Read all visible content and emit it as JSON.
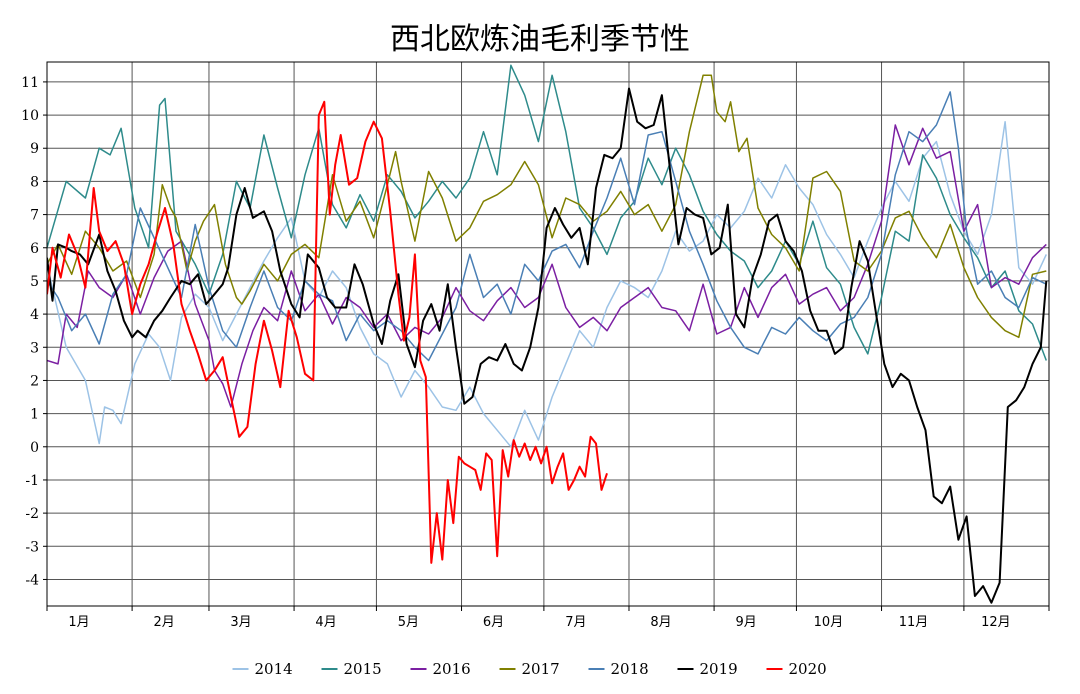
{
  "chart_data": {
    "type": "line",
    "title": "西北欧炼油毛利季节性",
    "xlabel": "",
    "ylabel": "",
    "x_range": [
      1,
      366
    ],
    "ylim": [
      -4.8,
      11.6
    ],
    "y_ticks": [
      -4,
      -3,
      -2,
      -1,
      0,
      1,
      2,
      3,
      4,
      5,
      6,
      7,
      8,
      9,
      10,
      11
    ],
    "month_labels": [
      "1月",
      "2月",
      "3月",
      "4月",
      "5月",
      "6月",
      "7月",
      "8月",
      "9月",
      "10月",
      "11月",
      "12月"
    ],
    "month_boundaries": [
      1,
      32,
      60,
      91,
      121,
      152,
      182,
      213,
      244,
      274,
      305,
      335,
      366
    ],
    "grid": true,
    "legend_position": "bottom",
    "series": [
      {
        "name": "2014",
        "color": "#9dc3e6",
        "x": [
          1,
          8,
          15,
          20,
          22,
          25,
          28,
          33,
          38,
          42,
          46,
          50,
          55,
          60,
          65,
          70,
          75,
          80,
          85,
          90,
          95,
          100,
          105,
          110,
          115,
          120,
          125,
          130,
          135,
          140,
          145,
          150,
          155,
          160,
          165,
          170,
          175,
          180,
          185,
          190,
          195,
          200,
          205,
          210,
          215,
          220,
          225,
          230,
          235,
          240,
          245,
          250,
          255,
          260,
          265,
          270,
          275,
          280,
          285,
          290,
          295,
          300,
          305,
          310,
          315,
          320,
          325,
          330,
          335,
          340,
          345,
          350,
          355,
          360,
          365
        ],
        "y": [
          5.5,
          3.0,
          2.0,
          0.1,
          1.2,
          1.1,
          0.7,
          2.5,
          3.4,
          3.0,
          2.0,
          3.9,
          4.6,
          4.2,
          3.2,
          4.0,
          4.8,
          5.6,
          6.3,
          6.9,
          5.0,
          4.5,
          5.3,
          4.8,
          3.6,
          2.8,
          2.5,
          1.5,
          2.3,
          1.8,
          1.2,
          1.1,
          1.8,
          1.0,
          0.5,
          0.0,
          1.1,
          0.2,
          1.5,
          2.5,
          3.5,
          3.0,
          4.2,
          5.0,
          4.8,
          4.5,
          5.3,
          6.5,
          5.9,
          6.2,
          7.0,
          6.6,
          7.1,
          8.1,
          7.5,
          8.5,
          7.8,
          7.3,
          6.4,
          5.8,
          5.1,
          6.2,
          7.2,
          8.0,
          7.4,
          8.7,
          9.2,
          7.6,
          6.5,
          5.8,
          7.0,
          9.8,
          5.4,
          4.9,
          5.8
        ]
      },
      {
        "name": "2015",
        "color": "#2e8b8b",
        "x": [
          1,
          8,
          15,
          20,
          24,
          28,
          33,
          38,
          42,
          44,
          48,
          55,
          60,
          65,
          70,
          75,
          80,
          85,
          90,
          95,
          100,
          105,
          110,
          115,
          120,
          125,
          130,
          135,
          140,
          145,
          150,
          155,
          160,
          165,
          170,
          175,
          180,
          185,
          190,
          195,
          200,
          205,
          210,
          215,
          220,
          225,
          230,
          235,
          240,
          245,
          250,
          255,
          260,
          265,
          270,
          275,
          280,
          285,
          290,
          295,
          300,
          305,
          310,
          315,
          320,
          325,
          330,
          335,
          340,
          345,
          350,
          355,
          360,
          365
        ],
        "y": [
          6.0,
          8.0,
          7.5,
          9.0,
          8.8,
          9.6,
          7.2,
          6.0,
          10.3,
          10.5,
          6.5,
          5.5,
          4.6,
          5.8,
          8.0,
          7.2,
          9.4,
          7.8,
          6.3,
          8.2,
          9.6,
          7.3,
          6.6,
          7.6,
          6.8,
          8.2,
          7.7,
          6.9,
          7.4,
          8.0,
          7.5,
          8.1,
          9.5,
          8.2,
          11.5,
          10.6,
          9.2,
          11.2,
          9.5,
          7.2,
          6.6,
          5.8,
          6.9,
          7.4,
          8.7,
          7.9,
          9.0,
          8.2,
          7.1,
          6.4,
          5.9,
          5.6,
          4.8,
          5.3,
          6.2,
          5.5,
          6.8,
          5.4,
          4.9,
          3.6,
          2.8,
          4.5,
          6.5,
          6.2,
          8.8,
          8.1,
          7.0,
          6.3,
          5.7,
          4.8,
          5.3,
          4.1,
          3.7,
          2.6
        ]
      },
      {
        "name": "2016",
        "color": "#7b1fa2",
        "x": [
          1,
          5,
          8,
          12,
          16,
          20,
          25,
          30,
          35,
          40,
          45,
          50,
          55,
          60,
          62,
          65,
          68,
          72,
          76,
          80,
          85,
          90,
          95,
          100,
          105,
          110,
          115,
          120,
          125,
          130,
          135,
          140,
          145,
          150,
          155,
          160,
          165,
          170,
          175,
          180,
          185,
          190,
          195,
          200,
          205,
          210,
          215,
          220,
          225,
          230,
          235,
          240,
          245,
          250,
          255,
          260,
          265,
          270,
          275,
          280,
          285,
          290,
          295,
          300,
          305,
          310,
          315,
          320,
          325,
          330,
          335,
          340,
          345,
          350,
          355,
          360,
          365
        ],
        "y": [
          2.6,
          2.5,
          4.0,
          3.6,
          5.3,
          4.8,
          4.5,
          5.2,
          4.0,
          5.1,
          5.9,
          6.2,
          4.3,
          3.2,
          2.3,
          1.9,
          1.2,
          2.5,
          3.5,
          4.2,
          3.8,
          5.3,
          4.1,
          4.6,
          3.7,
          4.5,
          4.2,
          3.6,
          4.0,
          3.2,
          3.6,
          3.4,
          3.9,
          4.8,
          4.1,
          3.8,
          4.4,
          4.8,
          4.2,
          4.5,
          5.5,
          4.2,
          3.6,
          3.9,
          3.5,
          4.2,
          4.5,
          4.8,
          4.2,
          4.1,
          3.5,
          4.9,
          3.4,
          3.6,
          4.8,
          3.9,
          4.8,
          5.2,
          4.3,
          4.6,
          4.8,
          4.1,
          4.5,
          5.5,
          6.8,
          9.7,
          8.5,
          9.6,
          8.7,
          8.9,
          6.5,
          7.3,
          4.8,
          5.1,
          4.9,
          5.7,
          6.1
        ]
      },
      {
        "name": "2017",
        "color": "#808000",
        "x": [
          1,
          5,
          10,
          15,
          20,
          25,
          30,
          35,
          40,
          43,
          46,
          48,
          52,
          55,
          58,
          62,
          66,
          70,
          72,
          75,
          80,
          85,
          90,
          95,
          100,
          105,
          110,
          115,
          120,
          125,
          128,
          130,
          135,
          140,
          145,
          150,
          155,
          160,
          165,
          170,
          175,
          180,
          185,
          190,
          195,
          200,
          205,
          210,
          215,
          220,
          225,
          230,
          235,
          240,
          243,
          245,
          248,
          250,
          253,
          256,
          260,
          265,
          270,
          275,
          280,
          285,
          290,
          295,
          300,
          305,
          310,
          315,
          320,
          325,
          330,
          335,
          340,
          345,
          350,
          355,
          360,
          365
        ],
        "y": [
          5.5,
          6.1,
          5.2,
          6.5,
          6.0,
          5.3,
          5.6,
          4.5,
          5.8,
          7.9,
          7.2,
          6.9,
          5.3,
          6.2,
          6.8,
          7.3,
          5.5,
          4.5,
          4.3,
          4.7,
          5.5,
          5.0,
          5.8,
          6.1,
          5.7,
          8.2,
          6.8,
          7.4,
          6.3,
          7.9,
          8.9,
          8.0,
          6.2,
          8.3,
          7.5,
          6.2,
          6.6,
          7.4,
          7.6,
          7.9,
          8.6,
          7.9,
          6.3,
          7.5,
          7.3,
          6.8,
          7.1,
          7.7,
          7.0,
          7.3,
          6.5,
          7.3,
          9.5,
          11.2,
          11.2,
          10.1,
          9.8,
          10.4,
          8.9,
          9.3,
          7.2,
          6.4,
          6.0,
          5.3,
          8.1,
          8.3,
          7.7,
          5.6,
          5.3,
          5.9,
          6.9,
          7.1,
          6.3,
          5.7,
          6.7,
          5.4,
          4.5,
          3.9,
          3.5,
          3.3,
          5.2,
          5.3
        ]
      },
      {
        "name": "2018",
        "color": "#4a7fb5",
        "x": [
          1,
          5,
          10,
          15,
          20,
          25,
          30,
          35,
          40,
          45,
          50,
          55,
          60,
          65,
          70,
          75,
          80,
          85,
          90,
          95,
          100,
          105,
          110,
          115,
          120,
          125,
          130,
          135,
          140,
          145,
          150,
          155,
          160,
          165,
          170,
          175,
          180,
          185,
          190,
          195,
          200,
          205,
          210,
          215,
          220,
          225,
          230,
          235,
          240,
          245,
          250,
          255,
          260,
          265,
          270,
          275,
          280,
          285,
          290,
          295,
          300,
          305,
          310,
          315,
          320,
          325,
          330,
          333,
          336,
          340,
          345,
          350,
          355,
          360,
          365
        ],
        "y": [
          5.0,
          4.5,
          3.5,
          4.0,
          3.1,
          4.6,
          5.2,
          7.2,
          6.3,
          5.4,
          4.5,
          6.7,
          4.8,
          3.5,
          3.0,
          4.2,
          5.3,
          4.2,
          3.8,
          5.0,
          4.6,
          4.4,
          3.2,
          4.0,
          3.5,
          3.8,
          3.5,
          3.0,
          2.6,
          3.4,
          4.2,
          5.8,
          4.5,
          4.9,
          4.0,
          5.5,
          5.0,
          5.9,
          6.1,
          5.4,
          6.5,
          7.5,
          8.7,
          7.3,
          9.4,
          9.5,
          8.0,
          6.5,
          5.5,
          4.4,
          3.6,
          3.0,
          2.8,
          3.6,
          3.4,
          3.9,
          3.5,
          3.2,
          3.7,
          3.9,
          4.5,
          5.8,
          8.2,
          9.5,
          9.2,
          9.7,
          10.7,
          9.0,
          6.5,
          4.9,
          5.3,
          4.5,
          4.2,
          5.1,
          4.9
        ]
      },
      {
        "name": "2019",
        "color": "#000000",
        "x": [
          1,
          3,
          5,
          8,
          10,
          13,
          16,
          20,
          23,
          26,
          29,
          32,
          34,
          37,
          40,
          43,
          46,
          50,
          53,
          56,
          59,
          62,
          65,
          67,
          70,
          73,
          76,
          80,
          83,
          86,
          90,
          93,
          96,
          100,
          103,
          106,
          110,
          113,
          116,
          120,
          123,
          126,
          129,
          132,
          135,
          138,
          141,
          144,
          147,
          150,
          153,
          156,
          159,
          162,
          165,
          168,
          171,
          174,
          177,
          180,
          183,
          186,
          189,
          192,
          195,
          198,
          201,
          204,
          207,
          210,
          213,
          216,
          219,
          222,
          225,
          228,
          231,
          234,
          237,
          240,
          243,
          246,
          249,
          252,
          255,
          258,
          261,
          264,
          267,
          270,
          273,
          276,
          279,
          282,
          285,
          288,
          291,
          294,
          297,
          300,
          303,
          306,
          309,
          312,
          315,
          318,
          321,
          324,
          327,
          330,
          333,
          336,
          339,
          342,
          345,
          348,
          351,
          354,
          357,
          360,
          363,
          365
        ],
        "y": [
          5.7,
          4.4,
          6.1,
          6.0,
          5.9,
          5.8,
          5.5,
          6.4,
          5.3,
          4.7,
          3.8,
          3.3,
          3.5,
          3.3,
          3.8,
          4.1,
          4.5,
          5.0,
          4.9,
          5.2,
          4.3,
          4.6,
          4.9,
          5.4,
          7.0,
          7.8,
          6.9,
          7.1,
          6.5,
          5.3,
          4.3,
          3.9,
          5.8,
          5.4,
          4.5,
          4.2,
          4.2,
          5.5,
          4.9,
          3.7,
          3.1,
          4.4,
          5.2,
          3.1,
          2.4,
          3.8,
          4.3,
          3.5,
          4.9,
          3.0,
          1.3,
          1.5,
          2.5,
          2.7,
          2.6,
          3.1,
          2.5,
          2.3,
          3.0,
          4.2,
          6.6,
          7.2,
          6.7,
          6.3,
          6.6,
          5.5,
          7.8,
          8.8,
          8.7,
          9.0,
          10.8,
          9.8,
          9.6,
          9.7,
          10.6,
          8.3,
          6.1,
          7.2,
          7.0,
          6.9,
          5.8,
          6.0,
          7.3,
          4.0,
          3.6,
          5.1,
          5.8,
          6.8,
          7.0,
          6.2,
          5.9,
          5.3,
          4.1,
          3.5,
          3.5,
          2.8,
          3.0,
          4.8,
          6.2,
          5.6,
          4.0,
          2.5,
          1.8,
          2.2,
          2.0,
          1.2,
          0.5,
          -1.5,
          -1.7,
          -1.2,
          -2.8,
          -2.1,
          -4.5,
          -4.2,
          -4.7,
          -4.1,
          1.2,
          1.4,
          1.8,
          2.5,
          3.0,
          5.0
        ]
      },
      {
        "name": "2020",
        "color": "#ff0000",
        "x": [
          1,
          3,
          6,
          9,
          12,
          15,
          18,
          20,
          23,
          26,
          29,
          32,
          35,
          38,
          41,
          44,
          47,
          50,
          53,
          56,
          59,
          62,
          65,
          68,
          71,
          74,
          77,
          80,
          83,
          86,
          89,
          92,
          95,
          98,
          100,
          102,
          104,
          106,
          108,
          111,
          114,
          117,
          120,
          123,
          126,
          129,
          131,
          133,
          135,
          137,
          139,
          141,
          143,
          145,
          147,
          149,
          151,
          153,
          155,
          157,
          159,
          161,
          163,
          165,
          167,
          169,
          171,
          173,
          175,
          177,
          179,
          181,
          183,
          185,
          187,
          189,
          191,
          193,
          195,
          197,
          199,
          201,
          203,
          205
        ],
        "y": [
          4.6,
          6.0,
          5.1,
          6.4,
          5.8,
          4.8,
          7.8,
          6.5,
          5.9,
          6.2,
          5.5,
          4.0,
          4.9,
          5.5,
          6.4,
          7.2,
          6.1,
          4.3,
          3.5,
          2.8,
          2.0,
          2.3,
          2.7,
          1.5,
          0.3,
          0.6,
          2.5,
          3.8,
          2.9,
          1.8,
          4.1,
          3.3,
          2.2,
          2.0,
          10.0,
          10.4,
          7.0,
          8.5,
          9.4,
          7.9,
          8.1,
          9.2,
          9.8,
          9.3,
          7.1,
          4.6,
          3.2,
          3.9,
          5.8,
          2.6,
          2.1,
          -3.5,
          -2.0,
          -3.4,
          -1.0,
          -2.3,
          -0.3,
          -0.5,
          -0.6,
          -0.7,
          -1.3,
          -0.2,
          -0.4,
          -3.3,
          -0.1,
          -0.9,
          0.2,
          -0.3,
          0.1,
          -0.4,
          0.0,
          -0.5,
          0.0,
          -1.1,
          -0.6,
          -0.2,
          -1.3,
          -1.0,
          -0.6,
          -0.9,
          0.3,
          0.1,
          -1.3,
          -0.8
        ]
      }
    ]
  }
}
